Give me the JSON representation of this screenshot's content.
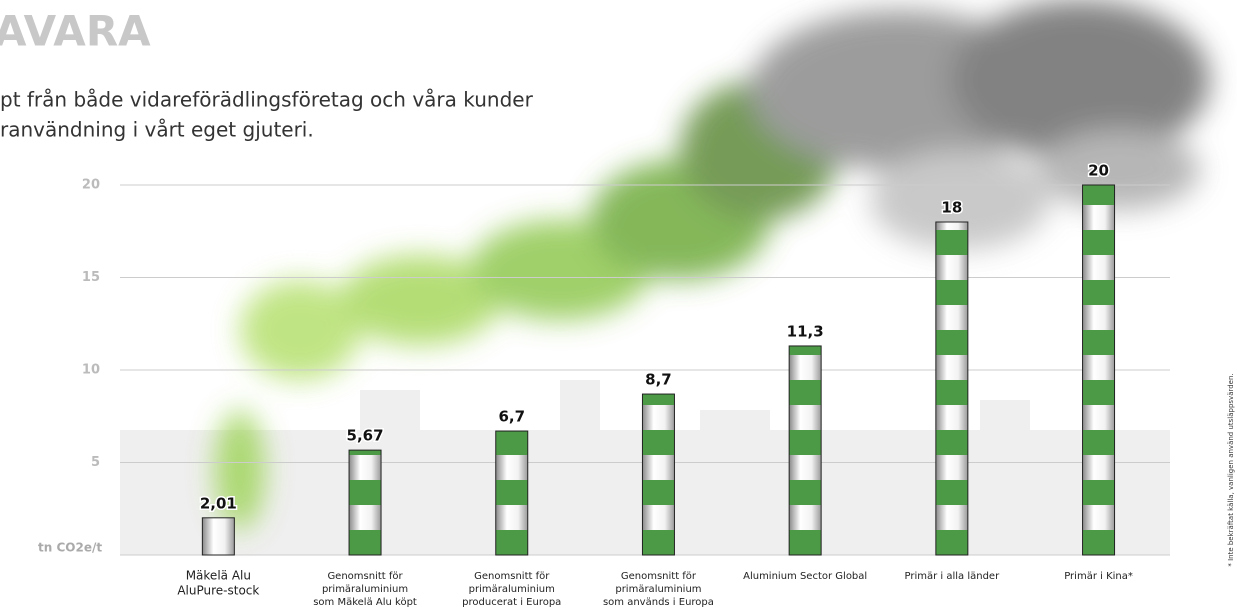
{
  "chart_data": {
    "type": "bar",
    "title": "AVARA",
    "subtitle": [
      "pt från både vidareförädlingsföretag och våra kunder",
      "ranvändning i vårt eget gjuteri."
    ],
    "y_label": "tn CO2e/t",
    "footnote": "* Inte bekräftat källa, vanligen använd utsläppsvärden.",
    "categories": [
      [
        "Mäkelä Alu",
        "AluPure-stock"
      ],
      [
        "Genomsnitt för",
        "primäraluminium",
        "som Mäkelä Alu köpt"
      ],
      [
        "Genomsnitt för",
        "primäraluminium",
        "producerat i Europa"
      ],
      [
        "Genomsnitt för",
        "primäraluminium",
        "som används i Europa"
      ],
      [
        "Aluminium Sector Global"
      ],
      [
        "Primär i alla länder"
      ],
      [
        "Primär i Kina*"
      ]
    ],
    "values": [
      2.01,
      5.67,
      6.7,
      8.7,
      11.3,
      18,
      20
    ],
    "value_labels": [
      "2,01",
      "5,67",
      "6,7",
      "8,7",
      "11,3",
      "18",
      "20"
    ],
    "color": "#4c9a45",
    "ylim": [
      0,
      20
    ],
    "yticks": [
      5,
      10,
      15,
      20
    ],
    "grid": true
  }
}
